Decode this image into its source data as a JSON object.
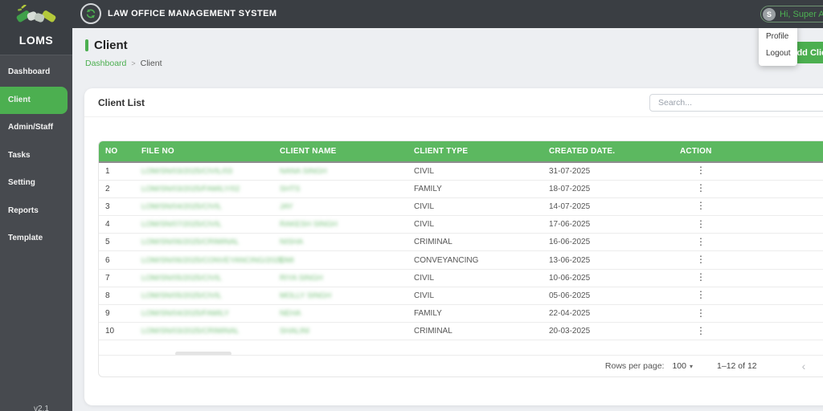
{
  "brand": {
    "logo_text": "LOMS",
    "version": "v2.1"
  },
  "topbar": {
    "title": "LAW OFFICE MANAGEMENT SYSTEM",
    "user_button": {
      "avatar_initial": "S",
      "greeting": "Hi, Super Admin"
    }
  },
  "user_menu": {
    "items": [
      "Profile",
      "Logout"
    ]
  },
  "sidebar": {
    "items": [
      {
        "label": "Dashboard",
        "active": false
      },
      {
        "label": "Client",
        "active": true
      },
      {
        "label": "Admin/Staff",
        "active": false
      },
      {
        "label": "Tasks",
        "active": false
      },
      {
        "label": "Setting",
        "active": false
      },
      {
        "label": "Reports",
        "active": false
      },
      {
        "label": "Template",
        "active": false
      }
    ]
  },
  "page": {
    "title": "Client",
    "breadcrumb": [
      "Dashboard",
      "Client"
    ]
  },
  "panel": {
    "title": "Client List",
    "search_placeholder": "Search...",
    "add_button_label": "Add Client"
  },
  "table": {
    "columns": [
      "NO",
      "FILE NO",
      "CLIENT NAME",
      "CLIENT TYPE",
      "CREATED DATE.",
      "ACTION"
    ],
    "masked_columns_note": "FILE NO and CLIENT NAME values are blurred/redacted in the source screenshot; placeholders preserve approximate length only",
    "rows": [
      {
        "no": "1",
        "file_no": "LOM/SN/03/2025/CIVIL/03",
        "client_name": "NANA SINGH",
        "client_type": "CIVIL",
        "created_date": "31-07-2025"
      },
      {
        "no": "2",
        "file_no": "LOM/SN/03/2025/FAMILY/02",
        "client_name": "SHTS",
        "client_type": "FAMILY",
        "created_date": "18-07-2025"
      },
      {
        "no": "3",
        "file_no": "LOM/SN/04/2025/CIVIL",
        "client_name": "JAY",
        "client_type": "CIVIL",
        "created_date": "14-07-2025"
      },
      {
        "no": "4",
        "file_no": "LOM/SN/07/2025/CIVIL",
        "client_name": "RAKESH SINGH",
        "client_type": "CIVIL",
        "created_date": "17-06-2025"
      },
      {
        "no": "5",
        "file_no": "LOM/SN/06/2025/CRIMINAL",
        "client_name": "NISHA",
        "client_type": "CRIMINAL",
        "created_date": "16-06-2025"
      },
      {
        "no": "6",
        "file_no": "LOM/SN/06/2025/CONVEYANCING/2025",
        "client_name": "OMI",
        "client_type": "CONVEYANCING",
        "created_date": "13-06-2025"
      },
      {
        "no": "7",
        "file_no": "LOM/SN/05/2025/CIVIL",
        "client_name": "RIYA SINGH",
        "client_type": "CIVIL",
        "created_date": "10-06-2025"
      },
      {
        "no": "8",
        "file_no": "LOM/SN/05/2025/CIVIL",
        "client_name": "MOLLY SINGH",
        "client_type": "CIVIL",
        "created_date": "05-06-2025"
      },
      {
        "no": "9",
        "file_no": "LOM/SN/04/2025/FAMILY",
        "client_name": "NEHA",
        "client_type": "FAMILY",
        "created_date": "22-04-2025"
      },
      {
        "no": "10",
        "file_no": "LOM/SN/03/2025/CRIMINAL",
        "client_name": "SHALINI",
        "client_type": "CRIMINAL",
        "created_date": "20-03-2025"
      }
    ]
  },
  "pagination": {
    "rows_per_page_label": "Rows per page:",
    "rows_per_page_value": "100",
    "range_label": "1–12 of 12"
  },
  "icons": {
    "kebab": "⋮",
    "dropdown_caret": "▾",
    "chevron_left": "‹",
    "chevron_right": "›",
    "breadcrumb_separator": ">",
    "scroll_up": "▲",
    "scroll_down": "▼"
  },
  "colors": {
    "accent_green": "#4caf50",
    "table_header_green": "#5cb860",
    "topbar_dark": "#3a3e43",
    "sidebar_dark": "#474a4f",
    "page_background": "#edeff2"
  }
}
